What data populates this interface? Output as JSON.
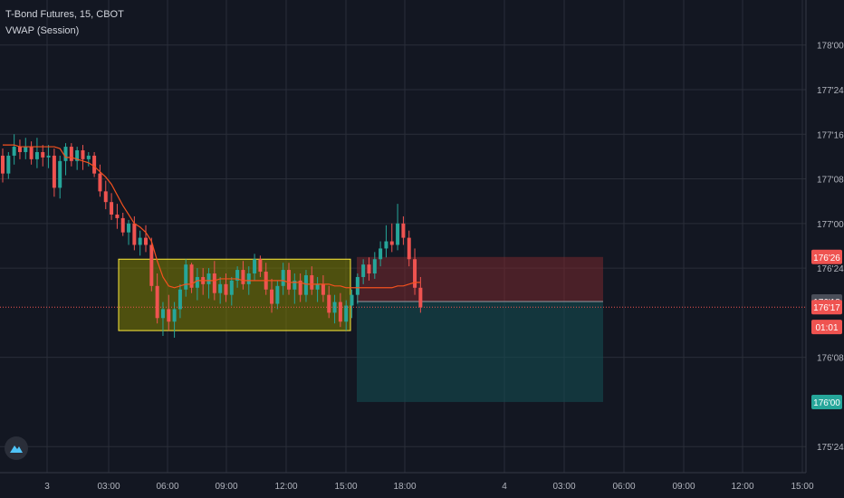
{
  "header": {
    "symbol_line": "T-Bond Futures, 15, CBOT",
    "indicator": "VWAP (Session)"
  },
  "icons": {
    "logo": "tradingview-logo-icon"
  },
  "colors": {
    "background": "#131722",
    "grid": "#2a2e39",
    "axis_text": "#b2b5be",
    "up": "#26a69a",
    "down": "#ef5350",
    "vwap": "#f4511e",
    "range_box_border": "#ffeb3b",
    "range_box_fill": "rgba(128,128,0,0.55)",
    "risk_fill": "rgba(120,40,45,0.55)",
    "reward_fill": "rgba(20,75,80,0.6)"
  },
  "chart_data": {
    "type": "candlestick",
    "symbol": "T-Bond Futures",
    "interval": "15",
    "exchange": "CBOT",
    "yticks": [
      "178'00",
      "177'24",
      "177'16",
      "177'08",
      "177'00",
      "176'24",
      "176'08",
      "175'24"
    ],
    "ytick_values": [
      178.0,
      177.75,
      177.5,
      177.25,
      177.0,
      176.75,
      176.25,
      175.75
    ],
    "xticks": [
      "3",
      "03:00",
      "06:00",
      "09:00",
      "12:00",
      "15:00",
      "18:00",
      "4",
      "03:00",
      "06:00",
      "09:00",
      "12:00",
      "15:00"
    ],
    "ylim": [
      175.675,
      178.1
    ],
    "price_labels": [
      {
        "text": "176'26",
        "value": 176.8125,
        "color": "#ef5350"
      },
      {
        "text": "176'18",
        "value": 176.5625,
        "color": "#4a4e59"
      },
      {
        "text": "176'17",
        "value": 176.53125,
        "color": "#ef5350"
      },
      {
        "text": "01:01",
        "value": 176.42,
        "color": "#ef5350"
      },
      {
        "text": "176'00",
        "value": 176.0,
        "color": "#26a69a"
      }
    ],
    "last_price": 176.53125,
    "range_box": {
      "high": 176.8,
      "low": 176.4
    },
    "position": {
      "stop": 176.8125,
      "entry": 176.5625,
      "target": 176.0
    },
    "vwap": [
      177.44,
      177.44,
      177.44,
      177.43,
      177.43,
      177.43,
      177.43,
      177.43,
      177.43,
      177.43,
      177.42,
      177.37,
      177.37,
      177.36,
      177.35,
      177.34,
      177.32,
      177.29,
      177.26,
      177.22,
      177.16,
      177.1,
      177.05,
      177.0,
      176.98,
      176.95,
      176.9,
      176.79,
      176.7,
      176.65,
      176.64,
      176.65,
      176.66,
      176.66,
      176.68,
      176.68,
      176.68,
      176.68,
      176.69,
      176.69,
      176.69,
      176.69,
      176.68,
      176.68,
      176.68,
      176.68,
      176.68,
      176.68,
      176.68,
      176.68,
      176.67,
      176.67,
      176.67,
      176.66,
      176.66,
      176.66,
      176.66,
      176.66,
      176.65,
      176.65,
      176.64,
      176.64,
      176.64,
      176.64,
      176.64,
      176.64,
      176.64,
      176.64,
      176.64,
      176.65,
      176.65,
      176.66,
      176.67,
      176.67
    ],
    "candles": [
      [
        177.38,
        177.42,
        177.23,
        177.28
      ],
      [
        177.28,
        177.4,
        177.25,
        177.38
      ],
      [
        177.38,
        177.5,
        177.33,
        177.43
      ],
      [
        177.43,
        177.47,
        177.36,
        177.4
      ],
      [
        177.4,
        177.48,
        177.36,
        177.43
      ],
      [
        177.43,
        177.46,
        177.33,
        177.36
      ],
      [
        177.36,
        177.48,
        177.31,
        177.4
      ],
      [
        177.4,
        177.44,
        177.32,
        177.37
      ],
      [
        177.37,
        177.44,
        177.31,
        177.38
      ],
      [
        177.38,
        177.42,
        177.15,
        177.2
      ],
      [
        177.2,
        177.38,
        177.14,
        177.35
      ],
      [
        177.35,
        177.45,
        177.27,
        177.43
      ],
      [
        177.43,
        177.45,
        177.32,
        177.35
      ],
      [
        177.35,
        177.43,
        177.3,
        177.41
      ],
      [
        177.41,
        177.44,
        177.3,
        177.36
      ],
      [
        177.36,
        177.4,
        177.32,
        177.38
      ],
      [
        177.38,
        177.4,
        177.26,
        177.28
      ],
      [
        177.28,
        177.33,
        177.15,
        177.18
      ],
      [
        177.18,
        177.24,
        177.08,
        177.12
      ],
      [
        177.12,
        177.17,
        177.02,
        177.05
      ],
      [
        177.05,
        177.11,
        176.97,
        177.03
      ],
      [
        177.03,
        177.06,
        176.93,
        176.95
      ],
      [
        176.95,
        177.02,
        176.88,
        177.0
      ],
      [
        177.0,
        177.04,
        176.85,
        176.88
      ],
      [
        176.88,
        176.96,
        176.82,
        176.92
      ],
      [
        176.92,
        176.99,
        176.84,
        176.88
      ],
      [
        176.88,
        176.92,
        176.62,
        176.65
      ],
      [
        176.65,
        176.72,
        176.44,
        176.47
      ],
      [
        176.47,
        176.56,
        176.37,
        176.52
      ],
      [
        176.52,
        176.6,
        176.4,
        176.45
      ],
      [
        176.45,
        176.56,
        176.36,
        176.52
      ],
      [
        176.52,
        176.66,
        176.47,
        176.63
      ],
      [
        176.63,
        176.8,
        176.59,
        176.77
      ],
      [
        176.77,
        176.78,
        176.61,
        176.64
      ],
      [
        176.64,
        176.75,
        176.57,
        176.7
      ],
      [
        176.7,
        176.75,
        176.6,
        176.66
      ],
      [
        176.66,
        176.75,
        176.58,
        176.72
      ],
      [
        176.72,
        176.79,
        176.57,
        176.61
      ],
      [
        176.61,
        176.7,
        176.55,
        176.66
      ],
      [
        176.66,
        176.72,
        176.56,
        176.6
      ],
      [
        176.6,
        176.7,
        176.54,
        176.68
      ],
      [
        176.68,
        176.76,
        176.64,
        176.74
      ],
      [
        176.74,
        176.79,
        176.63,
        176.66
      ],
      [
        176.66,
        176.76,
        176.6,
        176.72
      ],
      [
        176.72,
        176.83,
        176.68,
        176.8
      ],
      [
        176.8,
        176.82,
        176.7,
        176.73
      ],
      [
        176.73,
        176.78,
        176.6,
        176.63
      ],
      [
        176.63,
        176.69,
        176.5,
        176.55
      ],
      [
        176.55,
        176.68,
        176.52,
        176.65
      ],
      [
        176.65,
        176.78,
        176.6,
        176.74
      ],
      [
        176.74,
        176.78,
        176.6,
        176.63
      ],
      [
        176.63,
        176.72,
        176.55,
        176.68
      ],
      [
        176.68,
        176.72,
        176.56,
        176.6
      ],
      [
        176.6,
        176.74,
        176.56,
        176.71
      ],
      [
        176.71,
        176.76,
        176.6,
        176.63
      ],
      [
        176.63,
        176.7,
        176.56,
        176.66
      ],
      [
        176.66,
        176.71,
        176.56,
        176.6
      ],
      [
        176.6,
        176.65,
        176.47,
        176.5
      ],
      [
        176.5,
        176.6,
        176.44,
        176.56
      ],
      [
        176.56,
        176.61,
        176.42,
        176.45
      ],
      [
        176.45,
        176.57,
        176.4,
        176.54
      ],
      [
        176.54,
        176.63,
        176.47,
        176.6
      ],
      [
        176.6,
        176.72,
        176.55,
        176.7
      ],
      [
        176.7,
        176.8,
        176.66,
        176.77
      ],
      [
        176.77,
        176.81,
        176.68,
        176.72
      ],
      [
        176.72,
        176.84,
        176.69,
        176.8
      ],
      [
        176.8,
        176.9,
        176.76,
        176.86
      ],
      [
        176.86,
        176.99,
        176.81,
        176.9
      ],
      [
        176.9,
        177.0,
        176.84,
        176.88
      ],
      [
        176.88,
        177.11,
        176.85,
        177.0
      ],
      [
        177.0,
        177.04,
        176.88,
        176.92
      ],
      [
        176.92,
        176.96,
        176.76,
        176.8
      ],
      [
        176.8,
        176.86,
        176.6,
        176.64
      ],
      [
        176.64,
        176.7,
        176.5,
        176.53
      ]
    ]
  }
}
